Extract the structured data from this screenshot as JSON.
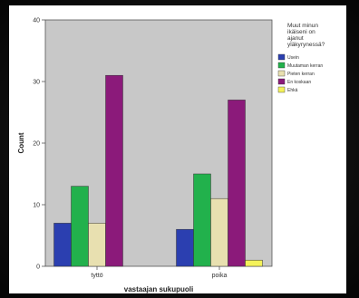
{
  "chart_data": {
    "type": "bar",
    "title": "",
    "xlabel": "vastaajan sukupuoli",
    "ylabel": "Count",
    "ylim": [
      0,
      40
    ],
    "yticks": [
      0,
      10,
      20,
      30,
      40
    ],
    "categories": [
      "tyttö",
      "poika"
    ],
    "legend": {
      "title_lines": [
        "Muut minun",
        "ikäiseni on",
        "ajanut",
        "yläkyrynessä?"
      ],
      "placement": "right"
    },
    "series": [
      {
        "name": "Usein",
        "color": "#2b3fb0",
        "values": [
          7,
          6
        ]
      },
      {
        "name": "Muutaman kerran",
        "color": "#22b14c",
        "values": [
          13,
          15
        ]
      },
      {
        "name": "Pieten kerran",
        "color": "#e8e0b0",
        "values": [
          7,
          11
        ]
      },
      {
        "name": "En koskaan",
        "color": "#8b1a7a",
        "values": [
          31,
          27
        ]
      },
      {
        "name": "Ehkä",
        "color": "#f4f25a",
        "values": [
          0,
          1
        ]
      }
    ]
  },
  "colors": {
    "plot_background": "#c8c8c8",
    "axis": "#555555"
  }
}
